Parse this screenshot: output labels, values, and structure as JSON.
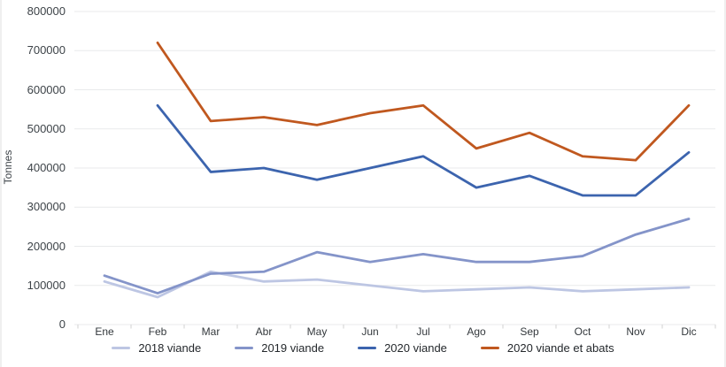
{
  "chart_data": {
    "type": "line",
    "title": "",
    "xlabel": "",
    "ylabel": "Tonnes",
    "categories": [
      "Ene",
      "Feb",
      "Mar",
      "Abr",
      "May",
      "Jun",
      "Jul",
      "Ago",
      "Sep",
      "Oct",
      "Nov",
      "Dic"
    ],
    "ylim": [
      0,
      800000
    ],
    "ytick_interval": 100000,
    "ytick_labels": [
      "0",
      "100000",
      "200000",
      "300000",
      "400000",
      "500000",
      "600000",
      "700000",
      "800000"
    ],
    "grid": "horizontal",
    "legend_position": "bottom",
    "series": [
      {
        "name": "2018 viande",
        "color": "#BDC6E3",
        "values": [
          110000,
          70000,
          135000,
          110000,
          115000,
          100000,
          85000,
          90000,
          95000,
          85000,
          90000,
          95000
        ]
      },
      {
        "name": "2019 viande",
        "color": "#8494C9",
        "values": [
          125000,
          80000,
          130000,
          135000,
          185000,
          160000,
          180000,
          160000,
          160000,
          175000,
          230000,
          270000
        ]
      },
      {
        "name": "2020 viande",
        "color": "#3C64AE",
        "values": [
          null,
          560000,
          390000,
          400000,
          370000,
          400000,
          430000,
          350000,
          380000,
          330000,
          330000,
          440000
        ]
      },
      {
        "name": "2020 viande et abats",
        "color": "#C0581F",
        "values": [
          null,
          720000,
          520000,
          530000,
          510000,
          540000,
          560000,
          450000,
          490000,
          430000,
          420000,
          560000
        ]
      }
    ],
    "style": {
      "gridline_color": "#e9eaeb",
      "tick_color": "#d2d2d2",
      "axis_text_color": "#3d4348"
    }
  }
}
